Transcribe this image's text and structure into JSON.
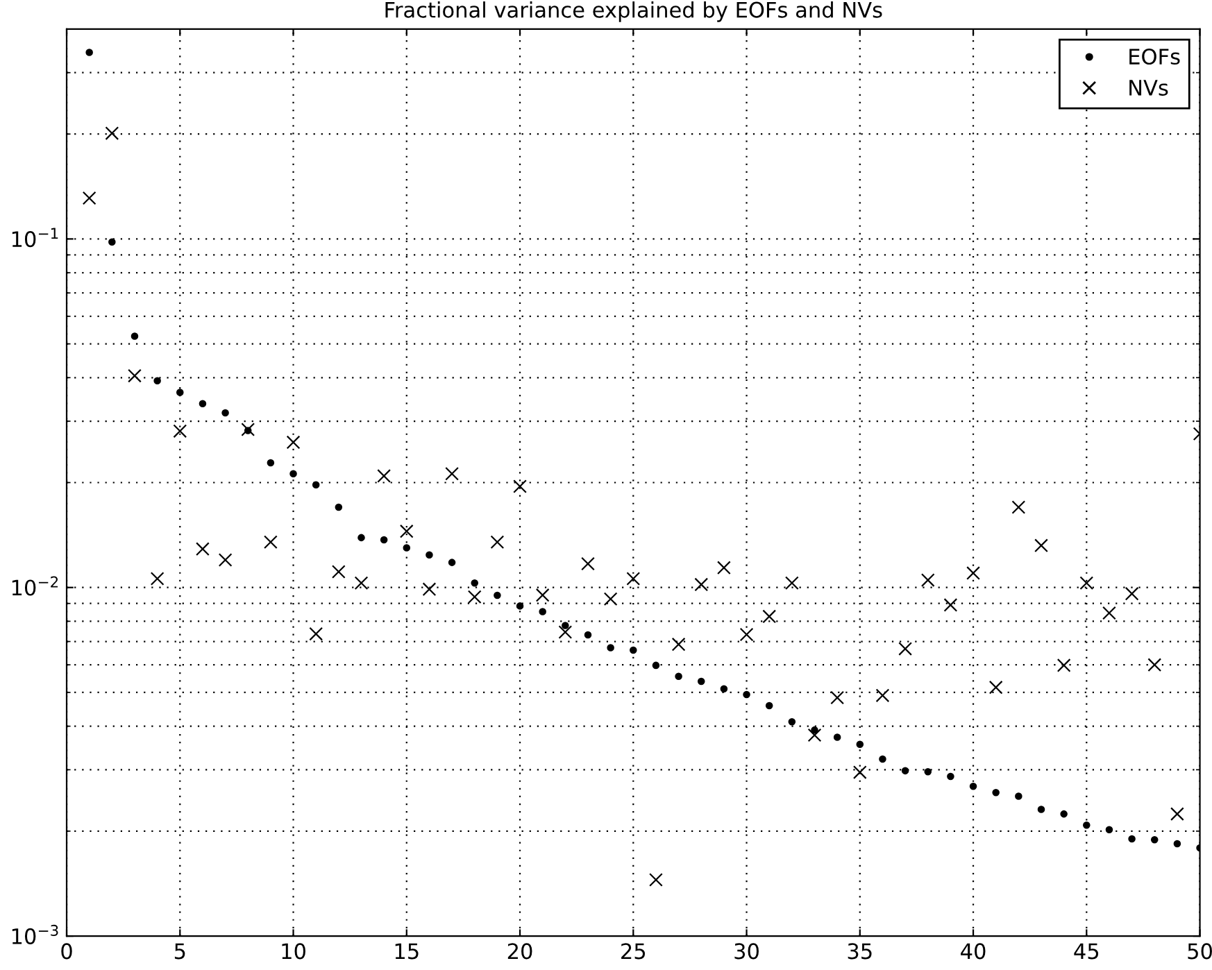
{
  "chart_data": {
    "type": "scatter",
    "title": "Fractional variance explained by EOFs and NVs",
    "x": [
      1,
      2,
      3,
      4,
      5,
      6,
      7,
      8,
      9,
      10,
      11,
      12,
      13,
      14,
      15,
      16,
      17,
      18,
      19,
      20,
      21,
      22,
      23,
      24,
      25,
      26,
      27,
      28,
      29,
      30,
      31,
      32,
      33,
      34,
      35,
      36,
      37,
      38,
      39,
      40,
      41,
      42,
      43,
      44,
      45,
      46,
      47,
      48,
      49,
      50
    ],
    "series": [
      {
        "name": "EOFs",
        "color": "#000000",
        "marker": "circle",
        "values": [
          0.343,
          0.098,
          0.0526,
          0.0392,
          0.0363,
          0.0337,
          0.0317,
          0.0282,
          0.0228,
          0.0212,
          0.0197,
          0.017,
          0.0139,
          0.0137,
          0.013,
          0.0124,
          0.0118,
          0.0103,
          0.0095,
          0.00885,
          0.00853,
          0.00778,
          0.00731,
          0.00672,
          0.00661,
          0.00598,
          0.00556,
          0.00538,
          0.00512,
          0.00493,
          0.00458,
          0.00412,
          0.0039,
          0.00372,
          0.00355,
          0.00322,
          0.00298,
          0.00296,
          0.00287,
          0.00269,
          0.00258,
          0.00252,
          0.00231,
          0.00224,
          0.00208,
          0.00202,
          0.0019,
          0.00189,
          0.00184,
          0.00179
        ]
      },
      {
        "name": "NVs",
        "color": "#000000",
        "marker": "cross",
        "values": [
          0.131,
          0.201,
          0.0405,
          0.0106,
          0.0281,
          0.0129,
          0.012,
          0.0284,
          0.0135,
          0.0261,
          0.00736,
          0.0111,
          0.0103,
          0.0209,
          0.0145,
          0.00989,
          0.0212,
          0.0094,
          0.0135,
          0.0195,
          0.00951,
          0.00745,
          0.0117,
          0.00927,
          0.0106,
          0.00145,
          0.00687,
          0.0102,
          0.0114,
          0.00733,
          0.00826,
          0.0103,
          0.00377,
          0.00483,
          0.00295,
          0.0049,
          0.00667,
          0.0105,
          0.00891,
          0.011,
          0.00517,
          0.017,
          0.0132,
          0.00598,
          0.0103,
          0.00845,
          0.0096,
          0.006,
          0.00224,
          0.0276
        ]
      }
    ],
    "log": "y",
    "xlim": [
      0,
      50
    ],
    "xticks": [
      0,
      5,
      10,
      15,
      20,
      25,
      30,
      35,
      40,
      45,
      50
    ],
    "ylim": [
      0.001,
      0.4
    ],
    "yticks": [
      {
        "value": 0.001,
        "label": "10$^{−3}$"
      },
      {
        "value": 0.01,
        "label": "10$^{−2}$"
      },
      {
        "value": 0.1,
        "label": "10$^{−1}$"
      }
    ],
    "grid": true,
    "legend": "top right"
  }
}
